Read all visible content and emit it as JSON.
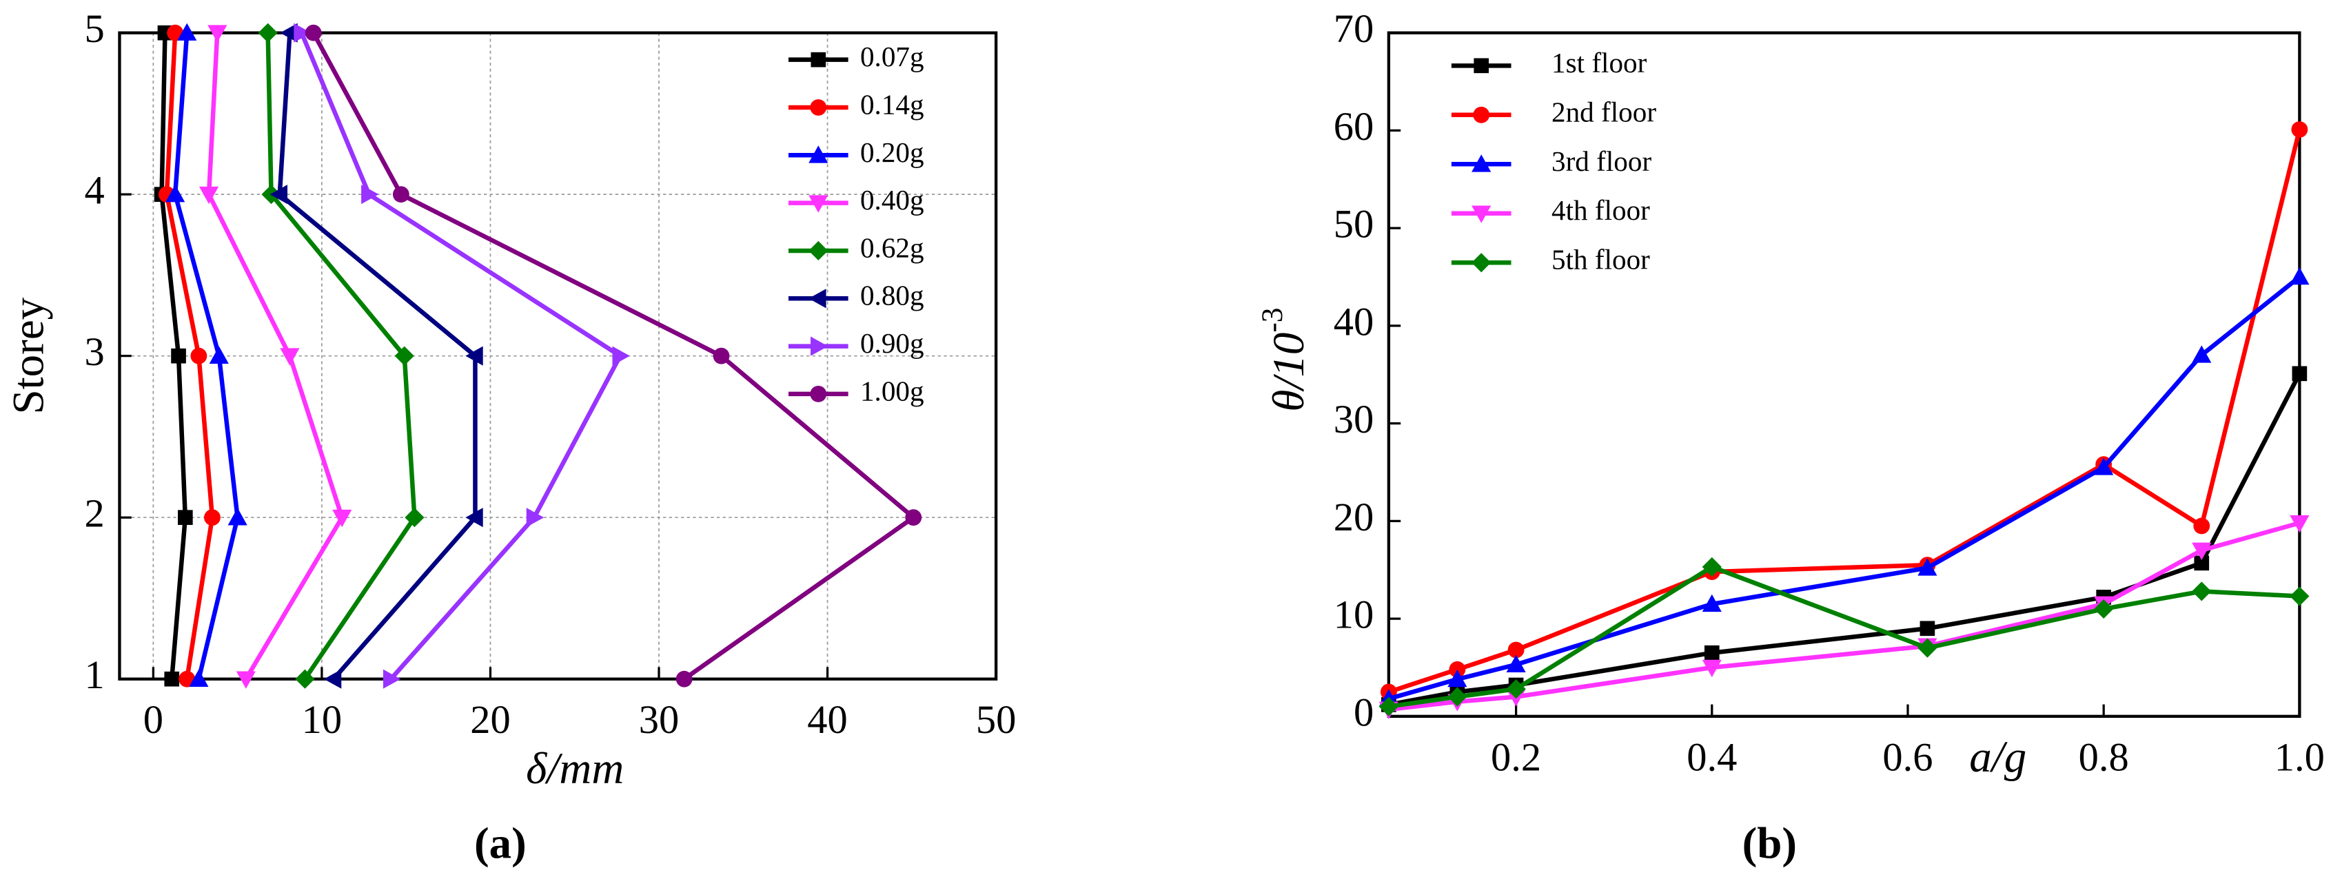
{
  "chart_data": [
    {
      "type": "line",
      "orientation": "horizontal",
      "panel_label": "(a)",
      "xlabel": "δ/mm",
      "ylabel": "Storey",
      "y": [
        1,
        2,
        3,
        4,
        5
      ],
      "xlim": [
        -2,
        50
      ],
      "xticks": [
        0,
        10,
        20,
        30,
        40,
        50
      ],
      "ylim": [
        1,
        5
      ],
      "yticks": [
        1,
        2,
        3,
        4,
        5
      ],
      "grid": true,
      "legend": "upper right",
      "series": [
        {
          "name": "0.07g",
          "color": "#000000",
          "marker": "square",
          "values": [
            1.1,
            1.9,
            1.5,
            0.5,
            0.7
          ]
        },
        {
          "name": "0.14g",
          "color": "#ff0000",
          "marker": "circle",
          "values": [
            2.0,
            3.5,
            2.7,
            0.8,
            1.3
          ]
        },
        {
          "name": "0.20g",
          "color": "#0000ff",
          "marker": "triangle-up",
          "values": [
            2.7,
            5.0,
            3.9,
            1.3,
            2.0
          ]
        },
        {
          "name": "0.40g",
          "color": "#ff33ff",
          "marker": "triangle-down",
          "values": [
            5.5,
            11.2,
            8.1,
            3.3,
            3.8
          ]
        },
        {
          "name": "0.62g",
          "color": "#008000",
          "marker": "diamond",
          "values": [
            9.0,
            15.5,
            14.9,
            7.0,
            6.8
          ]
        },
        {
          "name": "0.80g",
          "color": "#000080",
          "marker": "triangle-left",
          "values": [
            10.7,
            19.1,
            19.1,
            7.5,
            8.1
          ]
        },
        {
          "name": "0.90g",
          "color": "#9933ff",
          "marker": "triangle-right",
          "values": [
            14.1,
            22.6,
            27.7,
            12.8,
            8.8
          ]
        },
        {
          "name": "1.00g",
          "color": "#800080",
          "marker": "circle",
          "values": [
            31.5,
            45.1,
            33.7,
            14.7,
            9.5
          ]
        }
      ]
    },
    {
      "type": "line",
      "panel_label": "(b)",
      "xlabel": "a/g",
      "ylabel": "θ/10",
      "ylabel_superscript": "-3",
      "x": [
        0.07,
        0.14,
        0.2,
        0.4,
        0.62,
        0.8,
        0.9,
        1.0
      ],
      "xlim": [
        0.07,
        1.0
      ],
      "xticks": [
        0.2,
        0.4,
        0.6,
        0.8,
        {
          "value": 1.0,
          "label": "1.0"
        }
      ],
      "ylim": [
        0,
        70
      ],
      "yticks": [
        0,
        10,
        20,
        30,
        40,
        50,
        60,
        70
      ],
      "grid": false,
      "legend": "upper left",
      "series": [
        {
          "name": "1st floor",
          "color": "#000000",
          "marker": "square",
          "values": [
            1.2,
            2.5,
            3.2,
            6.5,
            9.0,
            12.2,
            15.7,
            35.1
          ]
        },
        {
          "name": "2nd floor",
          "color": "#ff0000",
          "marker": "circle",
          "values": [
            2.5,
            4.8,
            6.8,
            14.8,
            15.5,
            25.8,
            19.5,
            60.1
          ]
        },
        {
          "name": "3rd floor",
          "color": "#0000ff",
          "marker": "triangle-up",
          "values": [
            1.8,
            3.8,
            5.3,
            11.5,
            15.2,
            25.5,
            37.0,
            45.0
          ]
        },
        {
          "name": "4th floor",
          "color": "#ff33ff",
          "marker": "triangle-down",
          "values": [
            0.7,
            1.5,
            2.0,
            5.0,
            7.2,
            11.5,
            17.0,
            19.8
          ]
        },
        {
          "name": "5th floor",
          "color": "#008000",
          "marker": "diamond",
          "values": [
            1.0,
            2.0,
            2.8,
            15.3,
            7.0,
            11.0,
            12.8,
            12.3
          ]
        }
      ]
    }
  ]
}
